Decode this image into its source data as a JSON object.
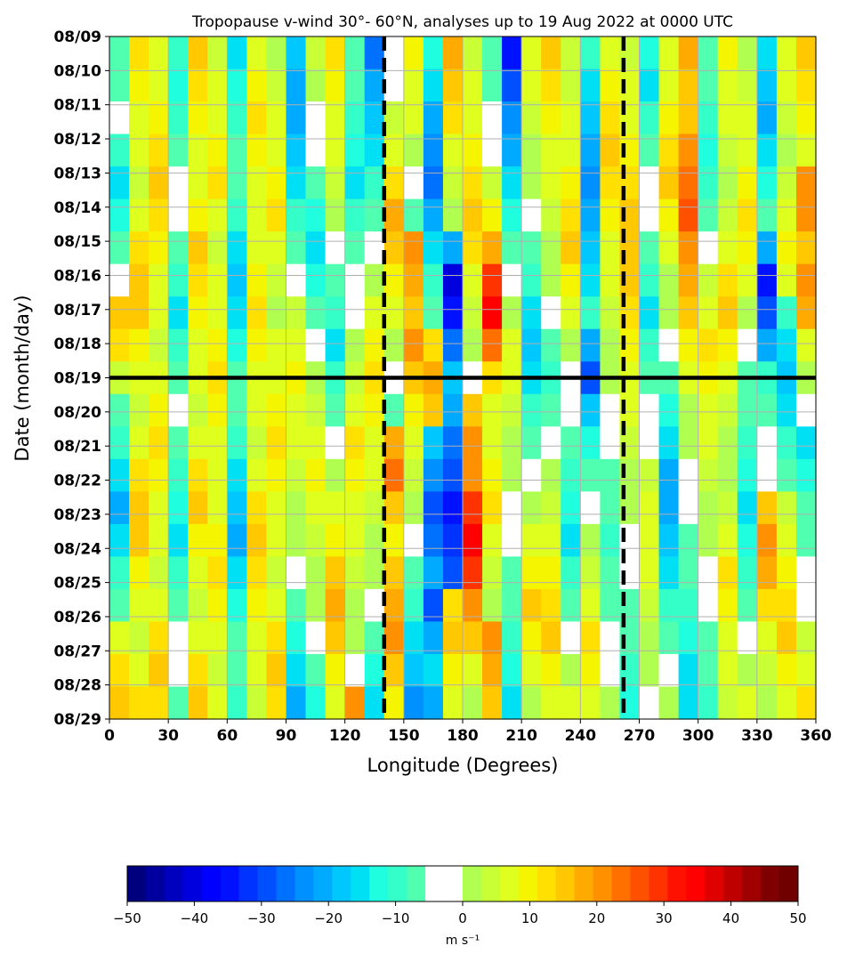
{
  "chart_data": {
    "type": "heatmap",
    "title": "Tropopause v-wind 30°- 60°N, analyses up to 19 Aug 2022 at 0000 UTC",
    "xlabel": "Longitude (Degrees)",
    "ylabel": "Date (month/day)",
    "xlim": [
      0,
      360
    ],
    "x_ticks": [
      "0",
      "30",
      "60",
      "90",
      "120",
      "150",
      "180",
      "210",
      "240",
      "270",
      "300",
      "330",
      "360"
    ],
    "y_ticks": [
      "08/09",
      "08/10",
      "08/11",
      "08/12",
      "08/13",
      "08/14",
      "08/15",
      "08/16",
      "08/17",
      "08/18",
      "08/19",
      "08/20",
      "08/21",
      "08/22",
      "08/23",
      "08/24",
      "08/25",
      "08/26",
      "08/27",
      "08/28",
      "08/29"
    ],
    "grid": true,
    "reference_lines": {
      "analysis_date": "08/19",
      "dashed_longitudes": [
        140,
        262
      ]
    },
    "colorbar": {
      "label": "m s⁻¹",
      "range": [
        -50,
        50
      ],
      "ticks": [
        "−50",
        "−40",
        "−30",
        "−20",
        "−10",
        "0",
        "10",
        "20",
        "30",
        "40",
        "50"
      ],
      "colors": [
        "#00007f",
        "#00009f",
        "#0000bf",
        "#0000df",
        "#0000ff",
        "#0011ff",
        "#0033ff",
        "#0050ff",
        "#0070ff",
        "#0090ff",
        "#00aaff",
        "#00c8ff",
        "#00e0f5",
        "#1fffdf",
        "#35ffc8",
        "#50ffb0",
        "#ffffff",
        "#ffffff",
        "#b0ff50",
        "#c8ff35",
        "#dfff1f",
        "#f5f500",
        "#ffe000",
        "#ffc800",
        "#ffaa00",
        "#ff9000",
        "#ff7000",
        "#ff5000",
        "#ff3300",
        "#ff1100",
        "#ff0000",
        "#df0000",
        "#bf0000",
        "#9f0000",
        "#7f0000",
        "#700000"
      ]
    },
    "values": [
      [
        -8,
        12,
        6,
        -10,
        14,
        4,
        -14,
        8,
        2,
        -18,
        4,
        12,
        -8,
        -26,
        -4,
        10,
        -12,
        18,
        4,
        -8,
        -34,
        8,
        14,
        4,
        -10,
        8,
        4,
        -12,
        6,
        18,
        -6,
        10,
        2,
        -16,
        8,
        14
      ],
      [
        -6,
        10,
        8,
        -12,
        12,
        6,
        -12,
        10,
        4,
        -20,
        2,
        10,
        -6,
        -22,
        -2,
        8,
        -16,
        16,
        6,
        -6,
        -30,
        6,
        12,
        4,
        -14,
        10,
        6,
        -14,
        8,
        16,
        -8,
        8,
        4,
        -18,
        6,
        12
      ],
      [
        -4,
        8,
        10,
        -10,
        10,
        8,
        -10,
        12,
        6,
        -22,
        -2,
        8,
        -10,
        -18,
        4,
        6,
        -20,
        12,
        8,
        -4,
        -24,
        4,
        10,
        6,
        -18,
        12,
        8,
        -10,
        10,
        14,
        -10,
        6,
        6,
        -20,
        4,
        10
      ],
      [
        -10,
        6,
        12,
        -6,
        8,
        10,
        -8,
        10,
        8,
        -18,
        -4,
        6,
        -12,
        -14,
        8,
        2,
        -24,
        8,
        10,
        -2,
        -20,
        2,
        8,
        8,
        -22,
        14,
        10,
        -6,
        12,
        20,
        -12,
        4,
        8,
        -16,
        2,
        8
      ],
      [
        -14,
        4,
        14,
        -4,
        6,
        12,
        -6,
        8,
        10,
        -14,
        -8,
        4,
        -14,
        -10,
        12,
        -2,
        -26,
        4,
        12,
        4,
        -16,
        0,
        6,
        10,
        -24,
        12,
        12,
        -4,
        14,
        24,
        -10,
        2,
        10,
        -12,
        4,
        22
      ],
      [
        -12,
        8,
        12,
        -2,
        10,
        8,
        -10,
        6,
        12,
        -10,
        -12,
        2,
        -10,
        -6,
        18,
        -6,
        -22,
        2,
        14,
        10,
        -12,
        -2,
        4,
        12,
        -22,
        10,
        14,
        -2,
        10,
        26,
        -6,
        4,
        12,
        -8,
        8,
        20
      ],
      [
        -8,
        12,
        10,
        -6,
        14,
        4,
        -14,
        8,
        8,
        -6,
        -14,
        -2,
        -6,
        -2,
        14,
        22,
        -14,
        -22,
        12,
        18,
        -8,
        -6,
        2,
        14,
        -18,
        8,
        16,
        -6,
        6,
        22,
        -2,
        8,
        10,
        -22,
        10,
        16
      ],
      [
        -4,
        16,
        8,
        -10,
        12,
        6,
        -18,
        10,
        4,
        -2,
        -12,
        -6,
        -4,
        2,
        10,
        18,
        -10,
        -40,
        8,
        30,
        -4,
        -10,
        0,
        10,
        -14,
        6,
        14,
        -10,
        2,
        18,
        4,
        12,
        6,
        -34,
        6,
        22
      ],
      [
        16,
        14,
        6,
        -14,
        10,
        8,
        -16,
        12,
        2,
        4,
        -8,
        -10,
        -2,
        6,
        6,
        14,
        -8,
        -36,
        4,
        36,
        2,
        -14,
        -4,
        6,
        -10,
        4,
        12,
        -14,
        0,
        14,
        8,
        14,
        2,
        -30,
        -10,
        18
      ],
      [
        12,
        10,
        4,
        -10,
        8,
        10,
        -12,
        10,
        6,
        8,
        -4,
        -14,
        0,
        10,
        2,
        20,
        12,
        -26,
        0,
        24,
        6,
        -18,
        -8,
        2,
        -20,
        2,
        10,
        -10,
        -4,
        10,
        12,
        10,
        -2,
        -20,
        -14,
        8
      ],
      [
        4,
        6,
        8,
        -6,
        6,
        12,
        -8,
        8,
        8,
        10,
        0,
        -10,
        4,
        12,
        -2,
        14,
        18,
        -18,
        -4,
        12,
        8,
        -14,
        -10,
        -2,
        -30,
        0,
        8,
        -6,
        -8,
        6,
        10,
        6,
        -6,
        -10,
        -18,
        0
      ],
      [
        -6,
        4,
        10,
        -4,
        4,
        10,
        -6,
        6,
        10,
        8,
        4,
        -6,
        8,
        10,
        -6,
        10,
        14,
        -22,
        14,
        6,
        4,
        -10,
        -8,
        -4,
        -18,
        -2,
        6,
        -4,
        -12,
        2,
        8,
        4,
        -8,
        -6,
        -14,
        -4
      ],
      [
        -10,
        8,
        12,
        -8,
        8,
        8,
        -10,
        4,
        12,
        6,
        8,
        -2,
        12,
        8,
        18,
        6,
        -18,
        -26,
        20,
        8,
        2,
        -6,
        -4,
        -8,
        -12,
        -4,
        4,
        -2,
        -16,
        0,
        6,
        2,
        -10,
        -4,
        -10,
        -16
      ],
      [
        -14,
        12,
        10,
        -10,
        12,
        6,
        -14,
        8,
        10,
        4,
        10,
        2,
        10,
        6,
        24,
        4,
        -24,
        -28,
        22,
        10,
        0,
        -2,
        0,
        -10,
        -8,
        -6,
        2,
        4,
        -20,
        -2,
        4,
        0,
        -12,
        -2,
        -6,
        -12
      ],
      [
        -20,
        16,
        8,
        -12,
        14,
        8,
        -18,
        12,
        8,
        2,
        6,
        6,
        8,
        4,
        16,
        2,
        -30,
        -36,
        28,
        12,
        -2,
        2,
        4,
        -12,
        -4,
        -8,
        0,
        6,
        -22,
        -4,
        2,
        4,
        -14,
        14,
        4,
        -8
      ],
      [
        -16,
        14,
        6,
        -14,
        10,
        10,
        -20,
        14,
        6,
        0,
        4,
        10,
        6,
        2,
        10,
        -2,
        -26,
        -32,
        36,
        8,
        -4,
        6,
        8,
        -14,
        0,
        -10,
        -2,
        8,
        -18,
        -6,
        0,
        8,
        -12,
        22,
        8,
        -6
      ],
      [
        -10,
        10,
        4,
        -10,
        6,
        12,
        -16,
        12,
        4,
        -4,
        2,
        14,
        4,
        0,
        14,
        -6,
        -22,
        -28,
        30,
        4,
        -6,
        10,
        10,
        -10,
        4,
        -8,
        -4,
        6,
        -14,
        -8,
        -2,
        12,
        -10,
        18,
        10,
        -4
      ],
      [
        -6,
        6,
        8,
        -6,
        4,
        10,
        -12,
        10,
        8,
        -8,
        0,
        18,
        2,
        -4,
        18,
        -10,
        -30,
        12,
        22,
        0,
        -8,
        14,
        12,
        -6,
        8,
        -6,
        -6,
        4,
        -10,
        -10,
        -4,
        10,
        -6,
        12,
        12,
        -2
      ],
      [
        8,
        4,
        12,
        -4,
        8,
        6,
        -8,
        8,
        12,
        -12,
        -4,
        14,
        0,
        -8,
        22,
        -14,
        -22,
        14,
        14,
        22,
        -10,
        10,
        14,
        -2,
        12,
        -4,
        -8,
        2,
        -6,
        -12,
        -6,
        8,
        -2,
        8,
        14,
        4
      ],
      [
        12,
        8,
        14,
        -2,
        12,
        4,
        -6,
        6,
        14,
        -16,
        -8,
        10,
        -2,
        -12,
        16,
        -18,
        -14,
        10,
        6,
        18,
        -12,
        6,
        10,
        2,
        10,
        -2,
        -10,
        0,
        -2,
        -14,
        -8,
        6,
        2,
        4,
        10,
        8
      ],
      [
        14,
        12,
        12,
        -6,
        14,
        8,
        -10,
        4,
        12,
        -20,
        -12,
        6,
        22,
        -16,
        10,
        -24,
        -20,
        6,
        2,
        14,
        -14,
        2,
        6,
        6,
        8,
        0,
        -12,
        -2,
        2,
        -16,
        -10,
        4,
        6,
        0,
        6,
        12
      ]
    ]
  }
}
